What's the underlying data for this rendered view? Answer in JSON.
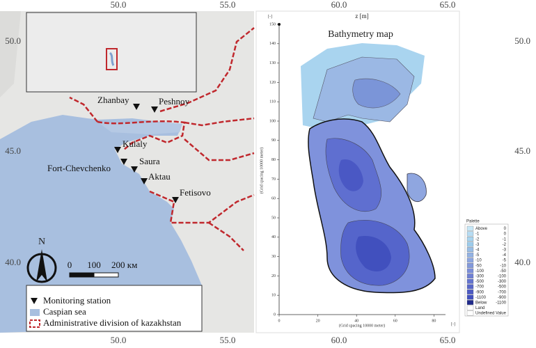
{
  "left_map": {
    "lon_top": [
      "50.0",
      "55.0"
    ],
    "lon_bottom": [
      "50.0",
      "55.0"
    ],
    "lat_left": [
      "50.0",
      "45.0",
      "40.0"
    ],
    "stations": [
      "Zhanbay",
      "Peshnoy",
      "Kulaly",
      "Saura",
      "Fort-Chevchenko",
      "Aktau",
      "Fetisovo"
    ],
    "north": "N",
    "scale": [
      "0",
      "100",
      "200 км"
    ],
    "legend": [
      "Monitoring station",
      "Caspian sea",
      "Administrative division of kazakhstan"
    ]
  },
  "right_panel": {
    "lon_top": [
      "60.0",
      "65.0"
    ],
    "lon_bottom": [
      "60.0",
      "65.0"
    ],
    "lat_right": [
      "50.0",
      "45.0",
      "40.0"
    ],
    "corner_top": "[-]",
    "corner_bottom": "[-]",
    "axis_title": "z [m]",
    "title": "Bathymetry map",
    "y_label": "(Grid spacing 10000 meter)",
    "x_label": "(Grid spacing 10000 meter)",
    "yticks": [
      0,
      10,
      20,
      30,
      40,
      50,
      60,
      70,
      80,
      90,
      100,
      110,
      120,
      130,
      140,
      150
    ],
    "xticks": [
      0,
      20,
      40,
      60,
      80
    ],
    "palette_title": "Palette",
    "palette": [
      [
        "Above",
        "0"
      ],
      [
        "-1",
        "0"
      ],
      [
        "-2",
        "-1"
      ],
      [
        "-3",
        "-2"
      ],
      [
        "-4",
        "-3"
      ],
      [
        "-5",
        "-4"
      ],
      [
        "-10",
        "-5"
      ],
      [
        "-50",
        "-10"
      ],
      [
        "-100",
        "-50"
      ],
      [
        "-300",
        "-100"
      ],
      [
        "-500",
        "-300"
      ],
      [
        "-700",
        "-500"
      ],
      [
        "-900",
        "-700"
      ],
      [
        "-1100",
        "-900"
      ],
      [
        "Below",
        "-1100"
      ],
      [
        "Land",
        ""
      ],
      [
        "Undefined Value",
        ""
      ]
    ]
  }
}
